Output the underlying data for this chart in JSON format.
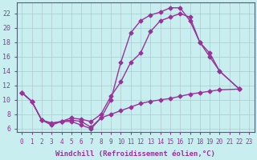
{
  "bg_color": "#c8eef0",
  "grid_color": "#b0c8cc",
  "line_color": "#993399",
  "marker": "D",
  "markersize": 2.5,
  "linewidth": 1.0,
  "xlabel": "Windchill (Refroidissement éolien,°C)",
  "xlabel_fontsize": 6.5,
  "xtick_fontsize": 5.5,
  "ytick_fontsize": 6.0,
  "ylim": [
    5.5,
    23.5
  ],
  "xlim": [
    -0.5,
    23.5
  ],
  "yticks": [
    6,
    8,
    10,
    12,
    14,
    16,
    18,
    20,
    22
  ],
  "xticks": [
    0,
    1,
    2,
    3,
    4,
    5,
    6,
    7,
    8,
    9,
    10,
    11,
    12,
    13,
    14,
    15,
    16,
    17,
    18,
    19,
    20,
    21,
    22,
    23
  ],
  "curve1_x": [
    0,
    1,
    2,
    3,
    4,
    5,
    6,
    7,
    8,
    9,
    10,
    11,
    12,
    13,
    14,
    15,
    16,
    17,
    18,
    19,
    20,
    21,
    22,
    23
  ],
  "curve1_y": [
    11.0,
    9.8,
    7.2,
    6.5,
    7.0,
    7.0,
    6.5,
    6.0,
    7.5,
    10.0,
    15.2,
    19.3,
    21.0,
    21.8,
    22.2,
    22.8,
    22.8,
    21.0,
    18.0,
    16.5,
    14.0,
    null,
    11.5,
    null
  ],
  "curve2_x": [
    0,
    1,
    2,
    3,
    4,
    5,
    6,
    7,
    8,
    9,
    10,
    11,
    12,
    13,
    14,
    15,
    16,
    17,
    18,
    19,
    20,
    21,
    22,
    23
  ],
  "curve2_y": [
    11.0,
    9.8,
    7.2,
    6.7,
    7.0,
    7.5,
    7.3,
    7.0,
    8.0,
    10.5,
    12.5,
    15.2,
    16.5,
    19.5,
    21.0,
    21.5,
    22.0,
    21.5,
    18.0,
    16.0,
    14.0,
    null,
    11.5,
    null
  ],
  "curve3_x": [
    0,
    1,
    2,
    3,
    4,
    5,
    6,
    7,
    8,
    9,
    10,
    11,
    12,
    13,
    14,
    15,
    16,
    17,
    18,
    19,
    20,
    21,
    22,
    23
  ],
  "curve3_y": [
    11.0,
    9.8,
    7.2,
    6.8,
    7.0,
    7.2,
    7.0,
    6.2,
    7.5,
    8.0,
    8.5,
    9.0,
    9.5,
    9.8,
    10.0,
    10.2,
    10.5,
    10.8,
    11.0,
    11.2,
    11.4,
    null,
    11.5,
    null
  ]
}
